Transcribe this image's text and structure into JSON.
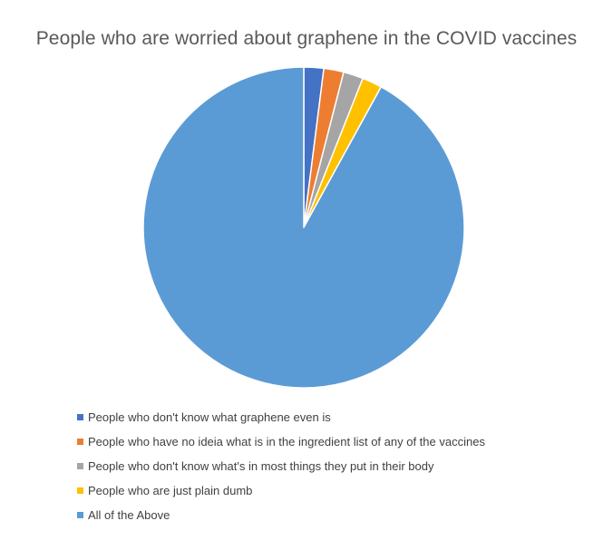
{
  "chart_data": {
    "type": "pie",
    "title": "People who are worried about graphene in the COVID vaccines",
    "categories": [
      "People who don't know what graphene even is",
      "People who have no ideia what is in the ingredient list of any of the vaccines",
      "People who don't know what's in most things they put in their body",
      "People who are just plain dumb",
      "All of the Above"
    ],
    "values": [
      2,
      2,
      2,
      2,
      92
    ],
    "colors": [
      "#4472C4",
      "#ED7D31",
      "#A5A5A5",
      "#FFC000",
      "#5B9BD5"
    ],
    "legend_position": "bottom-left",
    "start_angle": "12 o'clock",
    "direction": "clockwise"
  }
}
